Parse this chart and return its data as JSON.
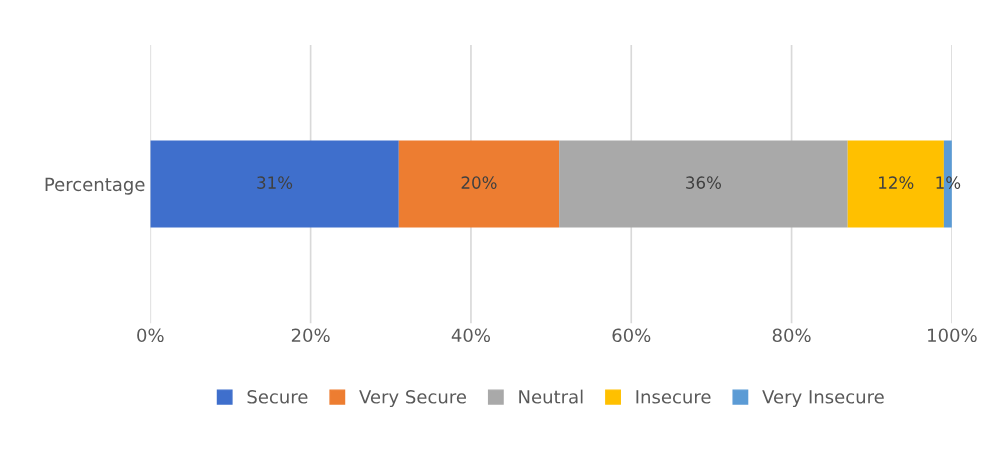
{
  "chart_data": {
    "type": "bar",
    "orientation": "horizontal",
    "stacked": true,
    "categories": [
      "Percentage"
    ],
    "series": [
      {
        "name": "Secure",
        "color": "#3f6fcc",
        "values": [
          31
        ],
        "value_labels": [
          "31%"
        ]
      },
      {
        "name": "Very Secure",
        "color": "#ed7d31",
        "values": [
          20
        ],
        "value_labels": [
          "20%"
        ]
      },
      {
        "name": "Neutral",
        "color": "#a9a9a9",
        "values": [
          36
        ],
        "value_labels": [
          "36%"
        ]
      },
      {
        "name": "Insecure",
        "color": "#ffc000",
        "values": [
          12
        ],
        "value_labels": [
          "12%"
        ]
      },
      {
        "name": "Very Insecure",
        "color": "#5b9bd5",
        "values": [
          1
        ],
        "value_labels": [
          "1%"
        ]
      }
    ],
    "xlim": [
      0,
      100
    ],
    "xticks": [
      {
        "value": 0,
        "label": "0%"
      },
      {
        "value": 20,
        "label": "20%"
      },
      {
        "value": 40,
        "label": "40%"
      },
      {
        "value": 60,
        "label": "60%"
      },
      {
        "value": 80,
        "label": "80%"
      },
      {
        "value": 100,
        "label": "100%"
      }
    ],
    "grid": "x",
    "legend": "bottom"
  }
}
